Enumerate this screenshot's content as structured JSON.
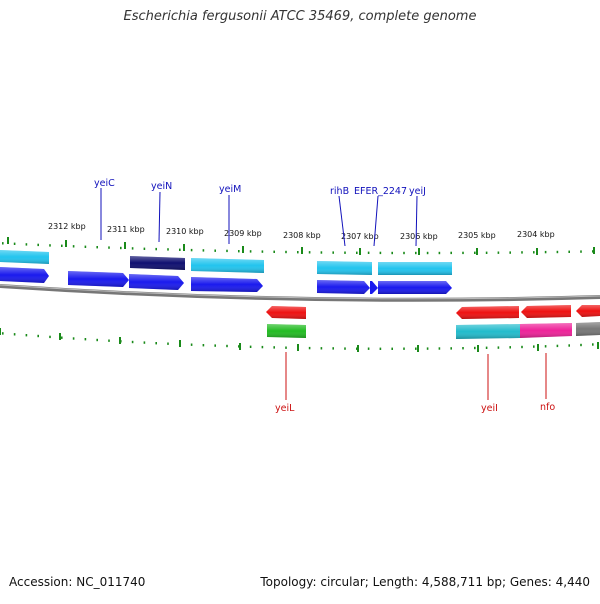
{
  "title": "Escherichia fergusonii ATCC 35469, complete genome",
  "footer": {
    "accession": "Accession: NC_011740",
    "summary": "Topology: circular; Length: 4,588,711 bp; Genes: 4,440"
  },
  "scale_labels": [
    "2312 kbp",
    "2311 kbp",
    "2310 kbp",
    "2309 kbp",
    "2308 kbp",
    "2307 kbp",
    "2306 kbp",
    "2305 kbp",
    "2304 kbp"
  ],
  "gene_labels": {
    "yeiC": "yeiC",
    "yeiN": "yeiN",
    "yeiM": "yeiM",
    "rihB": "rihB",
    "EFER_2247": "EFER_2247",
    "yeiJ": "yeiJ",
    "yeiL": "yeiL",
    "yeiI": "yeiI",
    "nfo": "nfo"
  },
  "colors": {
    "forward_cds": "#1a1aee",
    "forward_dark": "#0f0f70",
    "cyan": "#22c4ee",
    "reverse_cds": "#ee1111",
    "green": "#22bb22",
    "teal": "#22bbcc",
    "magenta": "#ee2299",
    "gray": "#777777",
    "tick": "#1a8a1a",
    "forward_label": "#1111bb",
    "reverse_label": "#cc1111"
  }
}
